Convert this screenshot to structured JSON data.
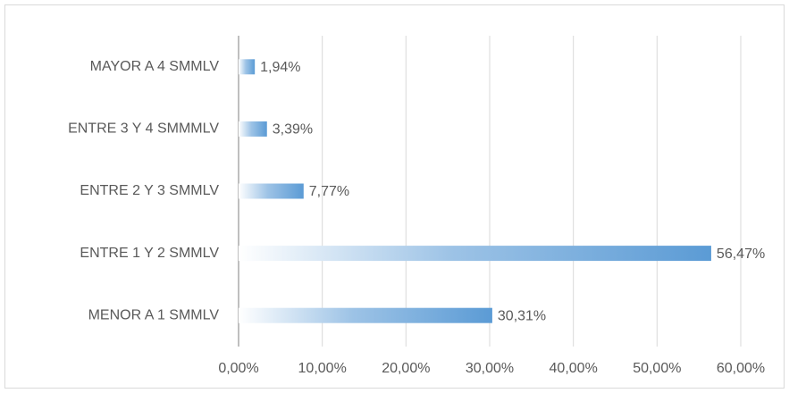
{
  "chart_data": {
    "type": "barh",
    "categories": [
      "MAYOR A 4 SMMLV",
      "ENTRE 3 Y 4 SMMMLV",
      "ENTRE 2 Y 3 SMMLV",
      "ENTRE 1 Y 2 SMMLV",
      "MENOR A 1 SMMLV"
    ],
    "values": [
      1.94,
      3.39,
      7.77,
      56.47,
      30.31
    ],
    "value_labels": [
      "1,94%",
      "3,39%",
      "7,77%",
      "56,47%",
      "30,31%"
    ],
    "color": "#5b9bd5",
    "xlim": [
      0,
      60
    ],
    "xticks": [
      {
        "value": 0,
        "label": "0,00%"
      },
      {
        "value": 10,
        "label": "10,00%"
      },
      {
        "value": 20,
        "label": "20,00%"
      },
      {
        "value": 30,
        "label": "30,00%"
      },
      {
        "value": 40,
        "label": "40,00%"
      },
      {
        "value": 50,
        "label": "50,00%"
      },
      {
        "value": 60,
        "label": "60,00%"
      }
    ],
    "grid": true
  }
}
